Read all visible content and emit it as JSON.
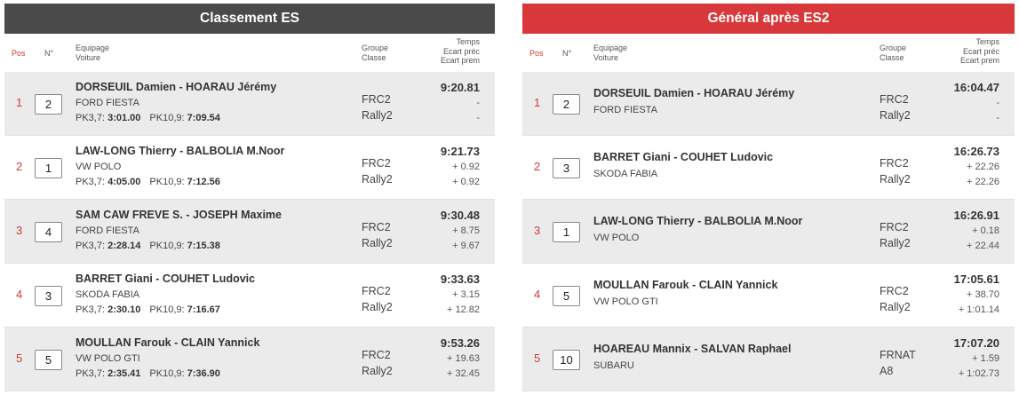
{
  "headers": {
    "pos": "Pos",
    "num": "N°",
    "equipage": "Equipage",
    "voiture": "Voiture",
    "groupe": "Groupe",
    "classe": "Classe",
    "temps": "Temps",
    "ecart_prec": "Ecart préc",
    "ecart_prem": "Ecart prem"
  },
  "left": {
    "title": "Classement ES",
    "rows": [
      {
        "pos": "1",
        "num": "2",
        "crew": "DORSEUIL Damien - HOARAU Jérémy",
        "car": "FORD FIESTA",
        "pk1_label": "PK3,7:",
        "pk1": "3:01.00",
        "pk2_label": "PK10,9:",
        "pk2": "7:09.54",
        "group": "FRC2",
        "class": "Rally2",
        "time": "9:20.81",
        "gap_prev": "-",
        "gap_first": "-"
      },
      {
        "pos": "2",
        "num": "1",
        "crew": "LAW-LONG Thierry - BALBOLIA M.Noor",
        "car": "VW POLO",
        "pk1_label": "PK3,7:",
        "pk1": "4:05.00",
        "pk2_label": "PK10,9:",
        "pk2": "7:12.56",
        "group": "FRC2",
        "class": "Rally2",
        "time": "9:21.73",
        "gap_prev": "+ 0.92",
        "gap_first": "+ 0.92"
      },
      {
        "pos": "3",
        "num": "4",
        "crew": "SAM CAW FREVE S. - JOSEPH Maxime",
        "car": "FORD FIESTA",
        "pk1_label": "PK3,7:",
        "pk1": "2:28.14",
        "pk2_label": "PK10,9:",
        "pk2": "7:15.38",
        "group": "FRC2",
        "class": "Rally2",
        "time": "9:30.48",
        "gap_prev": "+ 8.75",
        "gap_first": "+ 9.67"
      },
      {
        "pos": "4",
        "num": "3",
        "crew": "BARRET Giani - COUHET Ludovic",
        "car": "SKODA FABIA",
        "pk1_label": "PK3,7:",
        "pk1": "2:30.10",
        "pk2_label": "PK10,9:",
        "pk2": "7:16.67",
        "group": "FRC2",
        "class": "Rally2",
        "time": "9:33.63",
        "gap_prev": "+ 3.15",
        "gap_first": "+ 12.82"
      },
      {
        "pos": "5",
        "num": "5",
        "crew": "MOULLAN Farouk - CLAIN Yannick",
        "car": "VW POLO GTI",
        "pk1_label": "PK3,7:",
        "pk1": "2:35.41",
        "pk2_label": "PK10,9:",
        "pk2": "7:36.90",
        "group": "FRC2",
        "class": "Rally2",
        "time": "9:53.26",
        "gap_prev": "+ 19.63",
        "gap_first": "+ 32.45"
      }
    ]
  },
  "right": {
    "title": "Général après ES2",
    "rows": [
      {
        "pos": "1",
        "num": "2",
        "crew": "DORSEUIL Damien - HOARAU Jérémy",
        "car": "FORD FIESTA",
        "group": "FRC2",
        "class": "Rally2",
        "time": "16:04.47",
        "gap_prev": "-",
        "gap_first": "-"
      },
      {
        "pos": "2",
        "num": "3",
        "crew": "BARRET Giani - COUHET Ludovic",
        "car": "SKODA FABIA",
        "group": "FRC2",
        "class": "Rally2",
        "time": "16:26.73",
        "gap_prev": "+ 22.26",
        "gap_first": "+ 22.26"
      },
      {
        "pos": "3",
        "num": "1",
        "crew": "LAW-LONG Thierry - BALBOLIA M.Noor",
        "car": "VW POLO",
        "group": "FRC2",
        "class": "Rally2",
        "time": "16:26.91",
        "gap_prev": "+ 0.18",
        "gap_first": "+ 22.44"
      },
      {
        "pos": "4",
        "num": "5",
        "crew": "MOULLAN Farouk - CLAIN Yannick",
        "car": "VW POLO GTI",
        "group": "FRC2",
        "class": "Rally2",
        "time": "17:05.61",
        "gap_prev": "+ 38.70",
        "gap_first": "+ 1:01.14"
      },
      {
        "pos": "5",
        "num": "10",
        "crew": "HOAREAU Mannix - SALVAN Raphael",
        "car": "SUBARU",
        "group": "FRNAT",
        "class": "A8",
        "time": "17:07.20",
        "gap_prev": "+ 1.59",
        "gap_first": "+ 1:02.73"
      }
    ]
  }
}
